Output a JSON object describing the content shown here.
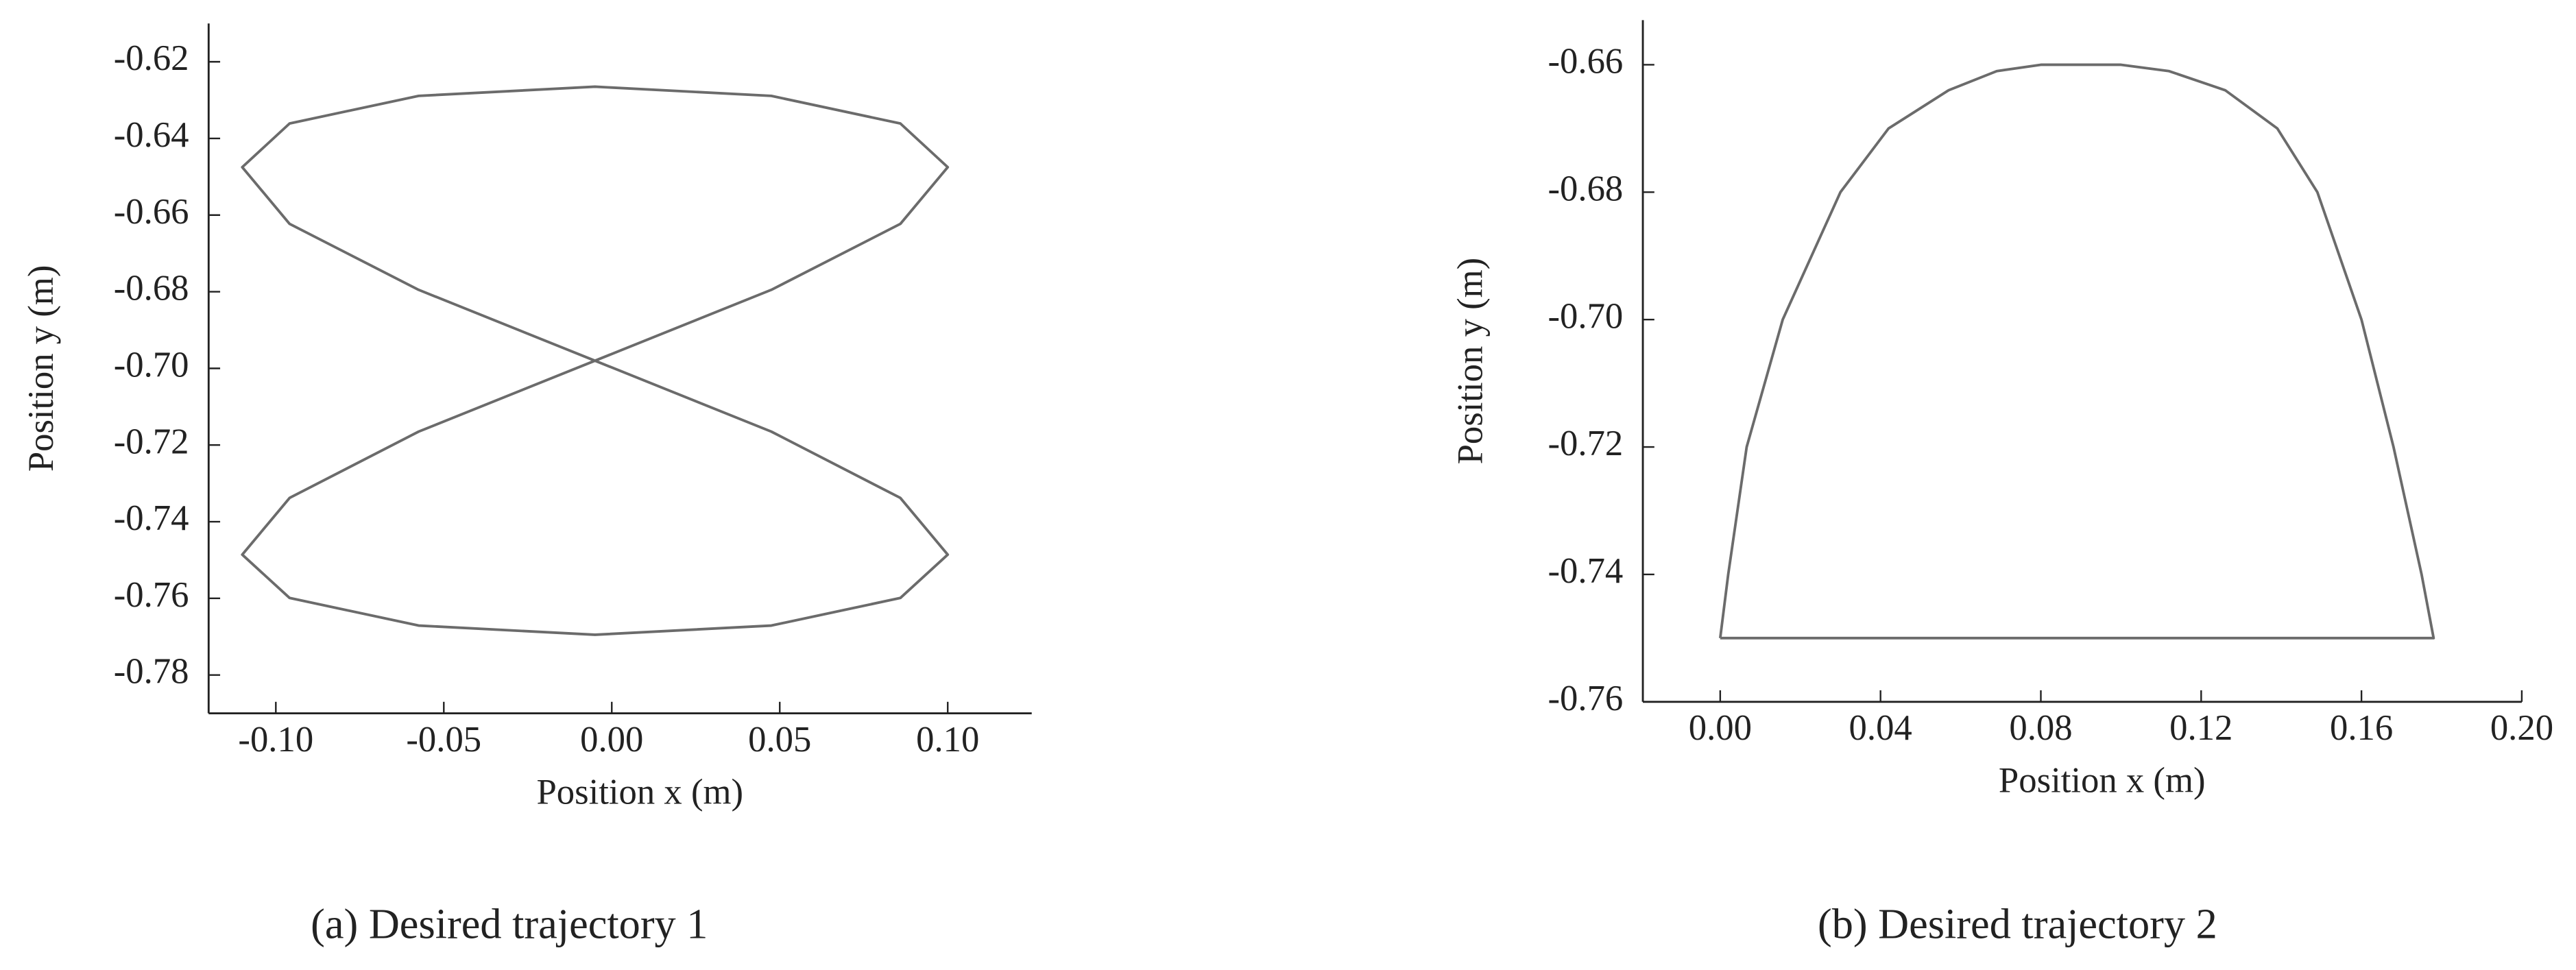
{
  "chart_data": [
    {
      "type": "line",
      "caption": "(a) Desired trajectory 1",
      "x_label": "Position x (m)",
      "y_label": "Position y (m)",
      "xlim": [
        -0.12,
        0.125
      ],
      "ylim": [
        -0.79,
        -0.61
      ],
      "xticks": [
        {
          "value": -0.1,
          "label": "-0.10"
        },
        -0.05,
        {
          "value": 0,
          "label": "0.00"
        },
        0.05,
        {
          "value": 0.1,
          "label": "0.10"
        }
      ],
      "yticks": [
        -0.62,
        -0.64,
        -0.66,
        -0.68,
        {
          "value": -0.7,
          "label": "-0.70"
        },
        -0.72,
        -0.74,
        -0.76,
        -0.78
      ],
      "series": [
        {
          "color": "#6b6b6b",
          "x": [
            -0.005,
            0.0475,
            0.0859,
            0.1,
            0.0859,
            0.0475,
            -0.005,
            -0.0575,
            -0.0959,
            -0.11,
            -0.0959,
            -0.0575,
            -0.005,
            0.0475,
            0.0859,
            0.1,
            0.0859,
            0.0475,
            -0.005,
            -0.0575,
            -0.0959,
            -0.11,
            -0.0959,
            -0.0575,
            -0.005
          ],
          "values": [
            -0.698,
            -0.6795,
            -0.6623,
            -0.6475,
            -0.6361,
            -0.6289,
            -0.6265,
            -0.6289,
            -0.6361,
            -0.6475,
            -0.6623,
            -0.6795,
            -0.698,
            -0.7165,
            -0.7338,
            -0.7486,
            -0.7599,
            -0.7671,
            -0.7695,
            -0.7671,
            -0.7599,
            -0.7486,
            -0.7338,
            -0.7165,
            -0.698
          ]
        }
      ]
    },
    {
      "type": "line",
      "caption": "(b) Desired trajectory 2",
      "x_label": "Position x (m)",
      "y_label": "Position y (m)",
      "xlim": [
        -0.0193,
        0.2
      ],
      "ylim": [
        -0.76,
        -0.653
      ],
      "xticks": [
        {
          "value": 0,
          "label": "0.00"
        },
        0.04,
        0.08,
        0.12,
        0.16,
        {
          "value": 0.2,
          "label": "0.20"
        }
      ],
      "yticks": [
        -0.66,
        -0.68,
        {
          "value": -0.7,
          "label": "-0.70"
        },
        -0.72,
        -0.74,
        -0.76
      ],
      "series": [
        {
          "color": "#6b6b6b",
          "x": [
            0.0,
            0.002,
            0.0066,
            0.0156,
            0.03,
            0.042,
            0.057,
            0.069,
            0.08,
            0.09,
            0.1,
            0.112,
            0.126,
            0.139,
            0.149,
            0.16,
            0.168,
            0.175,
            0.178,
            0.0
          ],
          "values": [
            -0.75,
            -0.74,
            -0.72,
            -0.7,
            -0.68,
            -0.67,
            -0.664,
            -0.661,
            -0.66,
            -0.66,
            -0.66,
            -0.661,
            -0.664,
            -0.67,
            -0.68,
            -0.7,
            -0.72,
            -0.74,
            -0.75,
            -0.75
          ]
        }
      ]
    }
  ]
}
